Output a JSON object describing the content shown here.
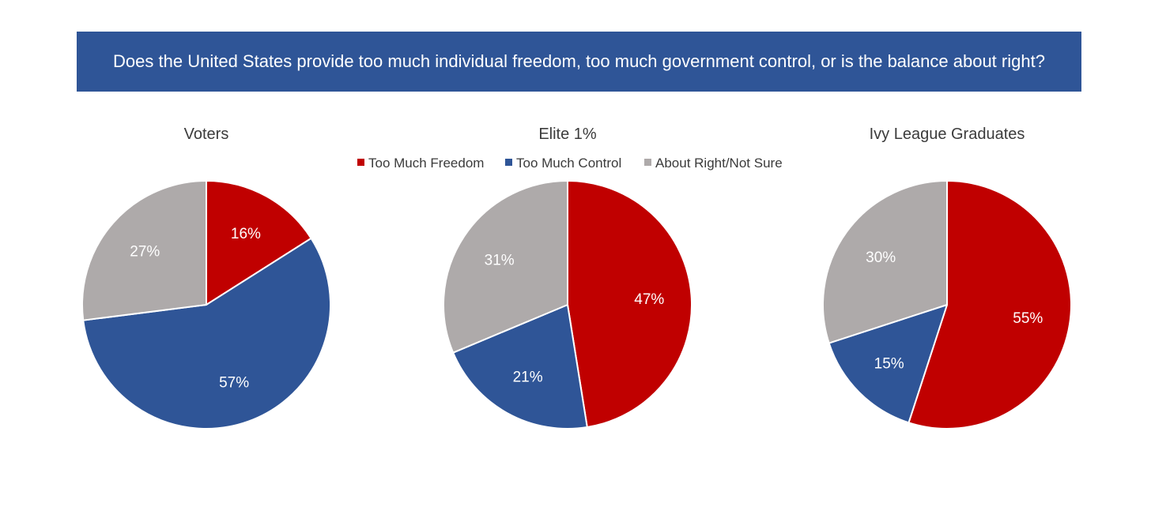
{
  "banner": {
    "text": "Does the United States provide too much individual freedom, too much government control, or is the balance about right?"
  },
  "colors": {
    "Too Much Freedom": "#c00000",
    "Too Much Control": "#2f5597",
    "About Right/Not Sure": "#aeaaaa",
    "banner_bg": "#2f5597"
  },
  "legend": {
    "items": [
      "Too Much Freedom",
      "Too Much Control",
      "About Right/Not Sure"
    ],
    "placement": "below middle chart title"
  },
  "chart_data": [
    {
      "type": "pie",
      "title": "Voters",
      "slices": [
        {
          "label": "Too Much Freedom",
          "value": 16,
          "text": "16%"
        },
        {
          "label": "Too Much Control",
          "value": 57,
          "text": "57%"
        },
        {
          "label": "About Right/Not Sure",
          "value": 27,
          "text": "27%"
        }
      ]
    },
    {
      "type": "pie",
      "title": "Elite 1%",
      "slices": [
        {
          "label": "Too Much Freedom",
          "value": 47,
          "text": "47%"
        },
        {
          "label": "Too Much Control",
          "value": 21,
          "text": "21%"
        },
        {
          "label": "About Right/Not Sure",
          "value": 31,
          "text": "31%"
        }
      ]
    },
    {
      "type": "pie",
      "title": "Ivy League Graduates",
      "slices": [
        {
          "label": "Too Much Freedom",
          "value": 55,
          "text": "55%"
        },
        {
          "label": "Too Much Control",
          "value": 15,
          "text": "15%"
        },
        {
          "label": "About Right/Not Sure",
          "value": 30,
          "text": "30%"
        }
      ]
    }
  ]
}
